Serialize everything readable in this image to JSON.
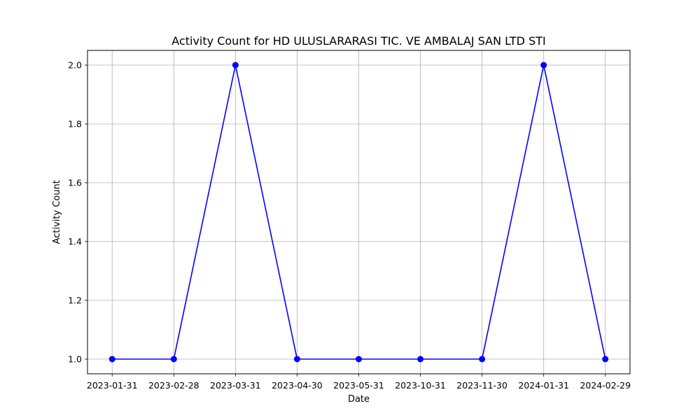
{
  "chart_data": {
    "type": "line",
    "title": "Activity Count for HD ULUSLARARASI TIC. VE AMBALAJ SAN LTD STI",
    "xlabel": "Date",
    "ylabel": "Activity Count",
    "categories": [
      "2023-01-31",
      "2023-02-28",
      "2023-03-31",
      "2023-04-30",
      "2023-05-31",
      "2023-10-31",
      "2023-11-30",
      "2024-01-31",
      "2024-02-29"
    ],
    "series": [
      {
        "values": [
          1,
          1,
          2,
          1,
          1,
          1,
          1,
          2,
          1
        ],
        "color": "#0000ff",
        "marker": "circle"
      }
    ],
    "ylim": [
      0.95,
      2.05
    ],
    "yticks": [
      "1.0",
      "1.2",
      "1.4",
      "1.6",
      "1.8",
      "2.0"
    ],
    "grid": true,
    "legend": "none"
  }
}
